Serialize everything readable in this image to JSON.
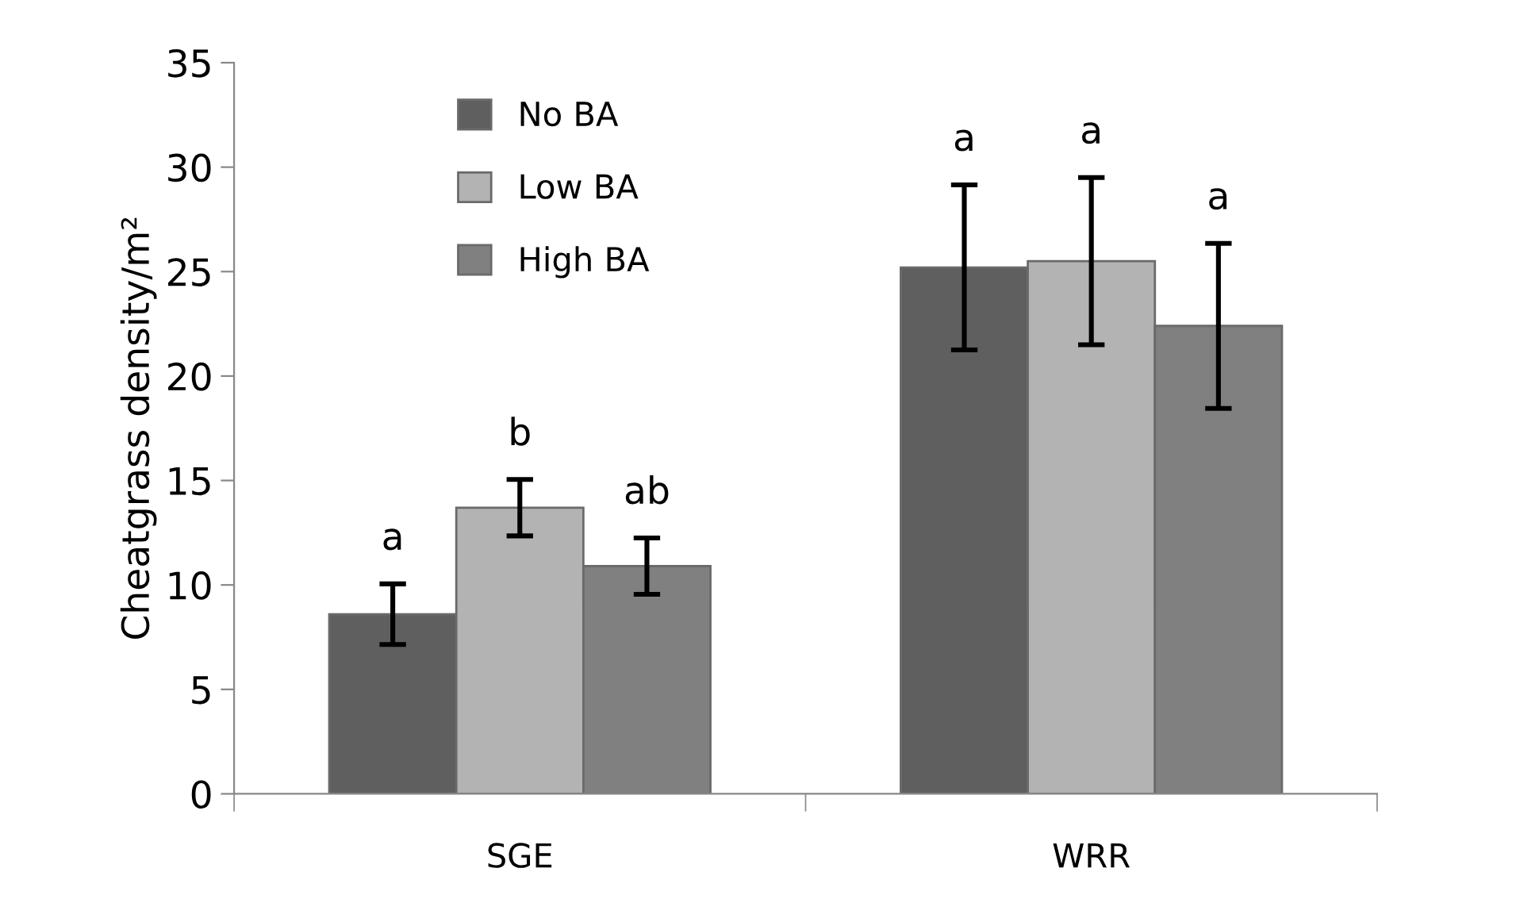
{
  "chart_data": {
    "type": "bar",
    "ylabel": "Cheatgrass density/m²",
    "categories": [
      "SGE",
      "WRR"
    ],
    "series": [
      {
        "name": "No BA",
        "color": "#5f5f5f",
        "values": [
          8.6,
          25.2
        ],
        "errors": [
          1.45,
          3.95
        ]
      },
      {
        "name": "Low BA",
        "color": "#b3b3b3",
        "values": [
          13.7,
          25.5
        ],
        "errors": [
          1.35,
          4.0
        ]
      },
      {
        "name": "High BA",
        "color": "#808080",
        "values": [
          10.9,
          22.4
        ],
        "errors": [
          1.35,
          3.95
        ]
      }
    ],
    "ylim": [
      0,
      35
    ],
    "yticks": [
      0,
      5,
      10,
      15,
      20,
      25,
      30,
      35
    ],
    "grid": false,
    "legend": "top left",
    "annotations": [
      "a",
      "b",
      "ab",
      "a",
      "a",
      "a"
    ]
  }
}
